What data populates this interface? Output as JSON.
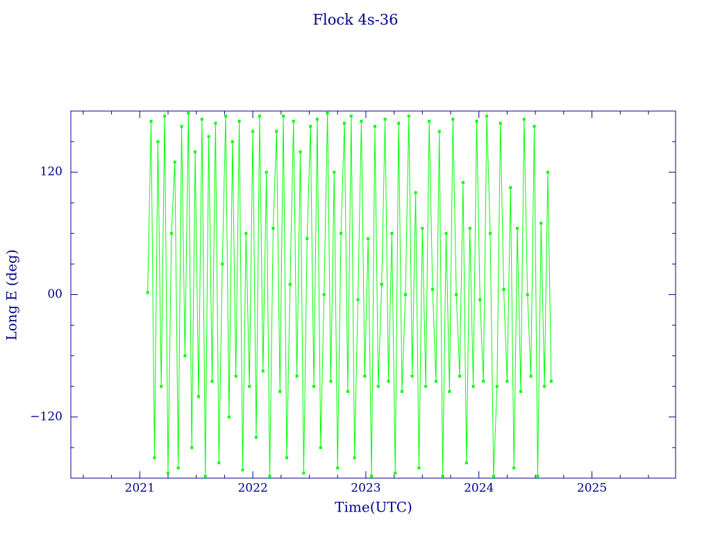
{
  "chart_data": {
    "type": "line",
    "title": "Flock 4s-36",
    "x_label": "Time(UTC)",
    "y_label": "Long E (deg)",
    "xlim": [
      2020.39,
      2025.74
    ],
    "ylim": [
      -180,
      180
    ],
    "xticks": [
      2021,
      2022,
      2023,
      2024,
      2025
    ],
    "xminor": [
      2020.5,
      2020.75,
      2021.25,
      2021.5,
      2021.75,
      2022.25,
      2022.5,
      2022.75,
      2023.25,
      2023.5,
      2023.75,
      2024.25,
      2024.5,
      2024.75,
      2025.25,
      2025.5
    ],
    "yticks": [
      {
        "value": -120,
        "label": "−120"
      },
      {
        "value": 0,
        "label": "00"
      },
      120
    ],
    "yminor": [
      -150,
      -90,
      -60,
      -30,
      30,
      60,
      90,
      150
    ],
    "axis_color": "#00008b",
    "x": [
      2021.07,
      2021.1,
      2021.13,
      2021.16,
      2021.19,
      2021.22,
      2021.25,
      2021.28,
      2021.31,
      2021.34,
      2021.37,
      2021.4,
      2021.43,
      2021.46,
      2021.49,
      2021.52,
      2021.55,
      2021.58,
      2021.61,
      2021.64,
      2021.67,
      2021.7,
      2021.73,
      2021.76,
      2021.79,
      2021.82,
      2021.85,
      2021.88,
      2021.91,
      2021.94,
      2021.97,
      2022.0,
      2022.03,
      2022.06,
      2022.09,
      2022.12,
      2022.15,
      2022.18,
      2022.21,
      2022.24,
      2022.27,
      2022.3,
      2022.33,
      2022.36,
      2022.39,
      2022.42,
      2022.45,
      2022.48,
      2022.51,
      2022.54,
      2022.57,
      2022.6,
      2022.63,
      2022.66,
      2022.69,
      2022.72,
      2022.75,
      2022.78,
      2022.81,
      2022.84,
      2022.87,
      2022.9,
      2022.93,
      2022.96,
      2022.99,
      2023.02,
      2023.05,
      2023.08,
      2023.11,
      2023.14,
      2023.17,
      2023.2,
      2023.23,
      2023.26,
      2023.29,
      2023.32,
      2023.35,
      2023.38,
      2023.41,
      2023.44,
      2023.47,
      2023.5,
      2023.53,
      2023.56,
      2023.59,
      2023.62,
      2023.65,
      2023.68,
      2023.71,
      2023.74,
      2023.77,
      2023.8,
      2023.83,
      2023.86,
      2023.89,
      2023.92,
      2023.95,
      2023.98,
      2024.01,
      2024.04,
      2024.07,
      2024.1,
      2024.13,
      2024.16,
      2024.19,
      2024.22,
      2024.25,
      2024.28,
      2024.31,
      2024.34,
      2024.37,
      2024.4,
      2024.43,
      2024.46,
      2024.49,
      2024.52,
      2024.55,
      2024.58,
      2024.61,
      2024.64
    ],
    "series": [
      {
        "color": "#00ff00",
        "values": [
          2,
          170,
          -160,
          150,
          -90,
          175,
          -175,
          60,
          130,
          -170,
          165,
          -60,
          178,
          -150,
          140,
          -100,
          172,
          -178,
          155,
          -85,
          168,
          -165,
          30,
          175,
          -120,
          150,
          -80,
          170,
          -172,
          60,
          -90,
          160,
          -140,
          175,
          -75,
          120,
          -178,
          65,
          160,
          -95,
          175,
          -160,
          10,
          170,
          -80,
          140,
          -175,
          55,
          165,
          -90,
          172,
          -150,
          0,
          178,
          -85,
          120,
          -170,
          60,
          168,
          -95,
          175,
          -160,
          -5,
          170,
          -80,
          55,
          -178,
          165,
          -90,
          10,
          172,
          -85,
          60,
          -175,
          168,
          -95,
          0,
          175,
          -80,
          100,
          -170,
          65,
          -90,
          170,
          5,
          -85,
          160,
          -178,
          60,
          -95,
          172,
          0,
          -80,
          110,
          -165,
          65,
          -90,
          170,
          -5,
          -85,
          175,
          60,
          -178,
          -90,
          168,
          5,
          -85,
          105,
          -170,
          65,
          -95,
          172,
          0,
          -80,
          165,
          -178,
          70,
          -90,
          120,
          -85
        ]
      }
    ]
  }
}
